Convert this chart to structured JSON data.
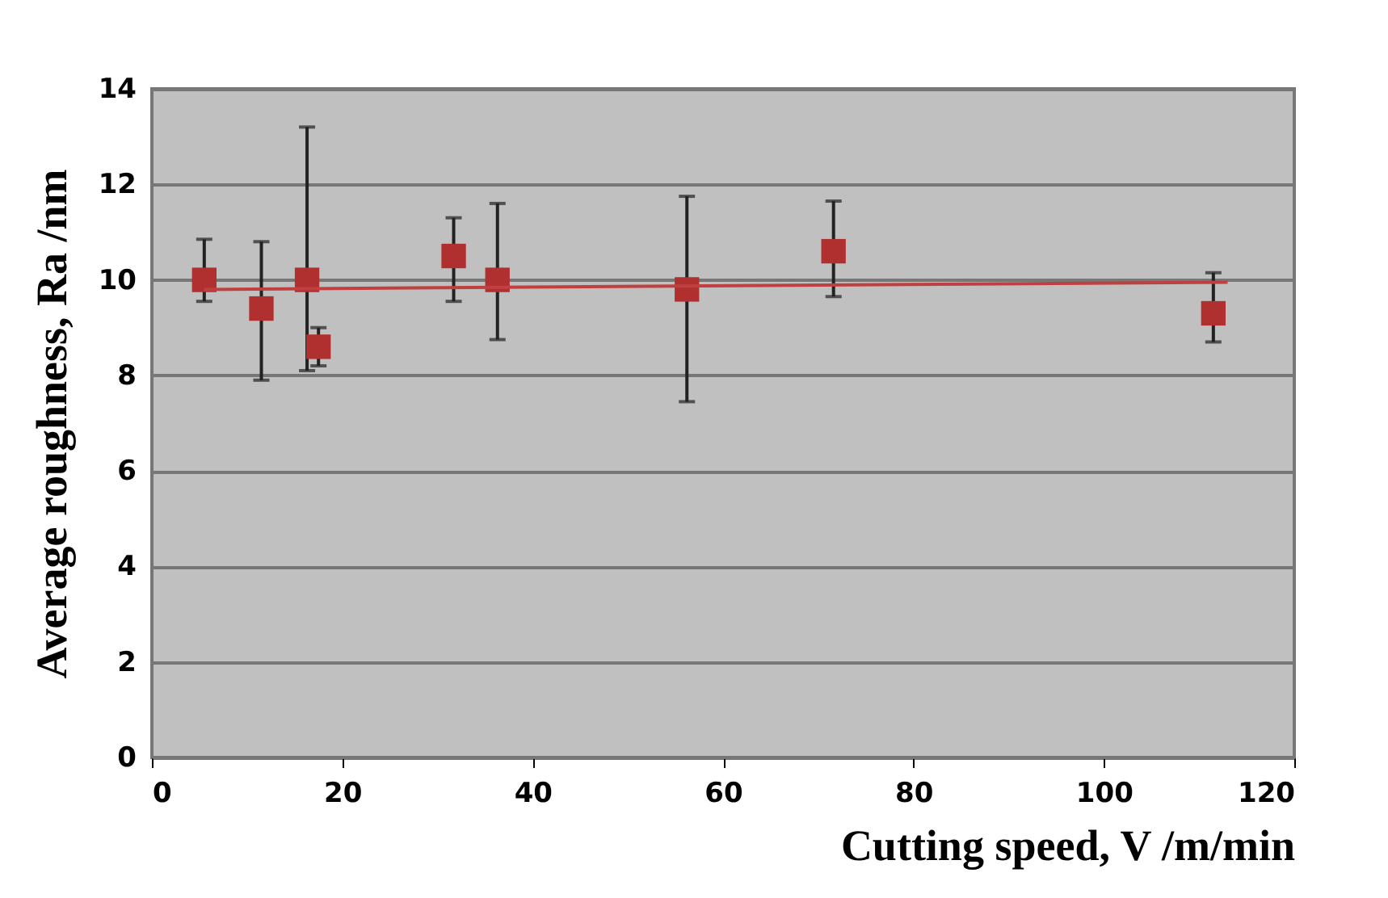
{
  "chart_data": {
    "type": "scatter",
    "xlabel": "Cutting speed, V /m/min",
    "ylabel": "Average roughness,  Ra /nm",
    "xlim": [
      0,
      120
    ],
    "xticks": [
      0,
      20,
      40,
      60,
      80,
      100,
      120
    ],
    "ylim": [
      0,
      14
    ],
    "yticks": [
      0,
      2,
      4,
      6,
      8,
      10,
      12,
      14
    ],
    "grid": "y",
    "series": [
      {
        "color": "#b03030",
        "marker": "square",
        "x": [
          5.5,
          11.5,
          16.3,
          17.5,
          31.7,
          36.3,
          56.2,
          71.6,
          111.5
        ],
        "values": [
          10.0,
          9.4,
          10.0,
          8.6,
          10.5,
          10.0,
          9.8,
          10.6,
          9.3
        ],
        "errors": [
          [
            9.55,
            10.85
          ],
          [
            7.9,
            10.8
          ],
          [
            8.1,
            13.2
          ],
          [
            8.2,
            9.0
          ],
          [
            9.55,
            11.3
          ],
          [
            8.75,
            11.6
          ],
          [
            7.45,
            11.75
          ],
          [
            9.65,
            11.65
          ],
          [
            8.7,
            10.15
          ]
        ]
      },
      {
        "type": "line",
        "color": "#c04040",
        "x": [
          5.5,
          113
        ],
        "values": [
          9.8,
          9.95
        ]
      }
    ]
  }
}
